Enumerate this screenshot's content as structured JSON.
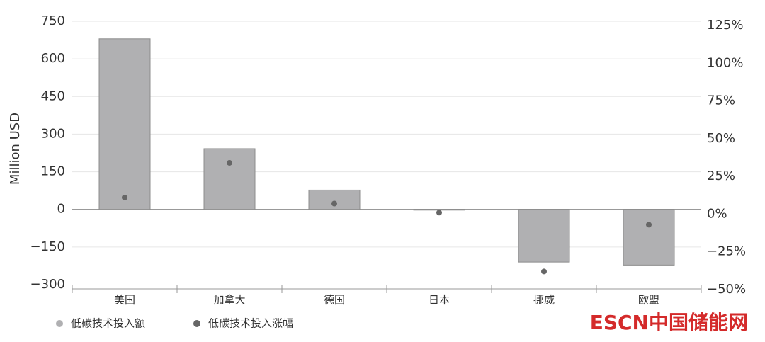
{
  "chart_data": {
    "type": "bar",
    "y_label": "Million USD",
    "categories": [
      "美国",
      "加拿大",
      "德国",
      "日本",
      "挪威",
      "欧盟"
    ],
    "series": [
      {
        "name": "低碳技术投入额",
        "color": "#b0b0b2",
        "values": [
          680,
          242,
          77,
          -3,
          -210,
          -222
        ]
      },
      {
        "name": "低碳技术投入涨幅",
        "color": "#666666",
        "axis": "y2",
        "values": [
          11,
          34,
          7,
          1,
          -38,
          -7
        ]
      }
    ],
    "ylim": [
      -300,
      750
    ],
    "yticks": [
      {
        "value": -300,
        "label": "−300"
      },
      {
        "value": -150,
        "label": "−150"
      },
      0,
      150,
      300,
      450,
      600,
      750
    ],
    "y2lim": [
      -50,
      125
    ],
    "y2ticks": [
      {
        "value": -50,
        "label": "−50%"
      },
      {
        "value": -25,
        "label": "−25%"
      },
      {
        "value": 0,
        "label": "0%"
      },
      {
        "value": 25,
        "label": "25%"
      },
      {
        "value": 50,
        "label": "50%"
      },
      {
        "value": 75,
        "label": "75%"
      },
      {
        "value": 100,
        "label": "100%"
      },
      {
        "value": 125,
        "label": "125%"
      }
    ],
    "grid": true,
    "watermark": "ESCN中国储能网"
  }
}
